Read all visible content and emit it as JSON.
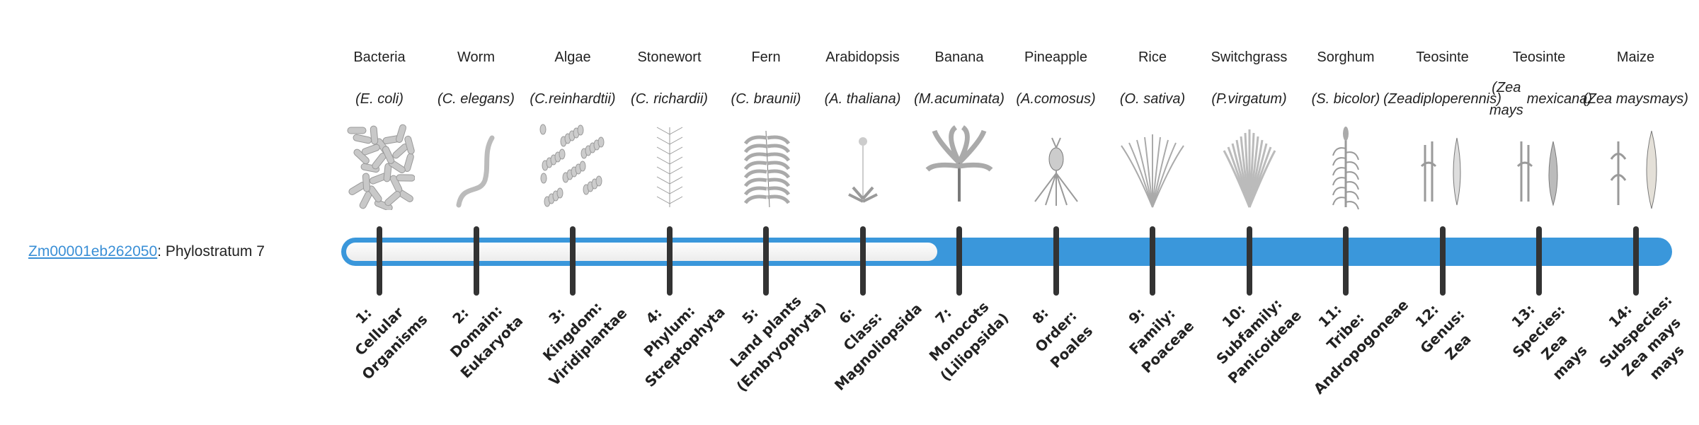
{
  "gene": {
    "id": "Zm00001eb262050",
    "separator": ": ",
    "phylostratum": "Phylostratum 7",
    "level": 7,
    "total": 14
  },
  "colors": {
    "accent": "#3a97db",
    "tick": "#333333",
    "link": "#3a8fd6"
  },
  "strata": [
    {
      "common": "Bacteria",
      "sci": [
        "(E. coli)"
      ],
      "icon": "bacteria-illustration",
      "rank": [
        "1:",
        "Cellular",
        "Organisms"
      ]
    },
    {
      "common": "Worm",
      "sci": [
        "(C. elegans)"
      ],
      "icon": "worm-illustration",
      "rank": [
        "2:",
        "Domain:",
        "Eukaryota"
      ]
    },
    {
      "common": "Algae",
      "sci": [
        "(C.",
        "reinhardtii)"
      ],
      "icon": "algae-illustration",
      "rank": [
        "3:",
        "Kingdom:",
        "Viridiplantae"
      ]
    },
    {
      "common": "Stonewort",
      "sci": [
        "(C. richardii)"
      ],
      "icon": "stonewort-illustration",
      "rank": [
        "4:",
        "Phylum:",
        "Streptophyta"
      ]
    },
    {
      "common": "Fern",
      "sci": [
        "(C. braunii)"
      ],
      "icon": "fern-illustration",
      "rank": [
        "5:",
        "Land plants",
        "(Embryophyta)"
      ]
    },
    {
      "common": "Arabidopsis",
      "sci": [
        "(A. thaliana)"
      ],
      "icon": "arabidopsis-illustration",
      "rank": [
        "6:",
        "Class:",
        "Magnoliopsida"
      ]
    },
    {
      "common": "Banana",
      "sci": [
        "(M.",
        "acuminata)"
      ],
      "icon": "banana-illustration",
      "rank": [
        "7:",
        "Monocots",
        "(Liliopsida)"
      ]
    },
    {
      "common": "Pineapple",
      "sci": [
        "(A.",
        "comosus)"
      ],
      "icon": "pineapple-illustration",
      "rank": [
        "8:",
        "Order:",
        "Poales"
      ]
    },
    {
      "common": "Rice",
      "sci": [
        "(O. sativa)"
      ],
      "icon": "rice-illustration",
      "rank": [
        "9:",
        "Family:",
        "Poaceae"
      ]
    },
    {
      "common": "Switchgrass",
      "sci": [
        "(P.",
        "virgatum)"
      ],
      "icon": "switchgrass-illustration",
      "rank": [
        "10:",
        "Subfamily:",
        "Panicoideae"
      ]
    },
    {
      "common": "Sorghum",
      "sci": [
        "(S. bicolor)"
      ],
      "icon": "sorghum-illustration",
      "rank": [
        "11:",
        "Tribe:",
        "Andropogoneae"
      ]
    },
    {
      "common": "Teosinte",
      "sci": [
        "(Zea",
        "diploperennis)"
      ],
      "icon": "teosinte-illustration",
      "rank": [
        "12:",
        "Genus:",
        "Zea"
      ]
    },
    {
      "common": "Teosinte",
      "sci": [
        "(Zea mays",
        "mexicana)"
      ],
      "icon": "teosinte-mexicana-illustration",
      "rank": [
        "13:",
        "Species:",
        "Zea",
        "mays"
      ]
    },
    {
      "common": "Maize",
      "sci": [
        "(Zea mays",
        "mays)"
      ],
      "icon": "maize-illustration",
      "rank": [
        "14:",
        "Subspecies:",
        "Zea mays",
        "mays"
      ]
    }
  ]
}
